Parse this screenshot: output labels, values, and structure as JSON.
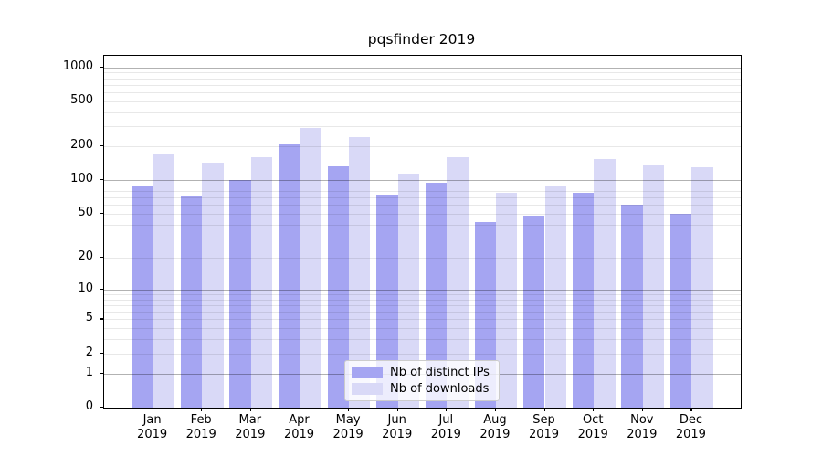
{
  "chart_data": {
    "type": "bar",
    "title": "pqsfinder 2019",
    "x_axis": {
      "months": [
        "Jan",
        "Feb",
        "Mar",
        "Apr",
        "May",
        "Jun",
        "Jul",
        "Aug",
        "Sep",
        "Oct",
        "Nov",
        "Dec"
      ],
      "year": "2019"
    },
    "categories": [
      "Jan 2019",
      "Feb 2019",
      "Mar 2019",
      "Apr 2019",
      "May 2019",
      "Jun 2019",
      "Jul 2019",
      "Aug 2019",
      "Sep 2019",
      "Oct 2019",
      "Nov 2019",
      "Dec 2019"
    ],
    "series": [
      {
        "name": "Nb of distinct IPs",
        "color": "#a5a5f2",
        "values": [
          90,
          73,
          100,
          207,
          133,
          75,
          95,
          42,
          48,
          77,
          60,
          50
        ]
      },
      {
        "name": "Nb of downloads",
        "color": "#d9d9f7",
        "values": [
          170,
          143,
          161,
          291,
          240,
          115,
          160,
          78,
          90,
          155,
          135,
          130
        ]
      }
    ],
    "y_axis": {
      "scale": "log10(value+1)",
      "ticks": [
        0,
        1,
        2,
        5,
        10,
        20,
        50,
        100,
        200,
        500,
        1000
      ],
      "max": 1265,
      "major_gridlines": [
        1,
        10,
        100,
        1000
      ]
    },
    "grid": "horizontal major and minor",
    "legend_position": "lower center"
  }
}
